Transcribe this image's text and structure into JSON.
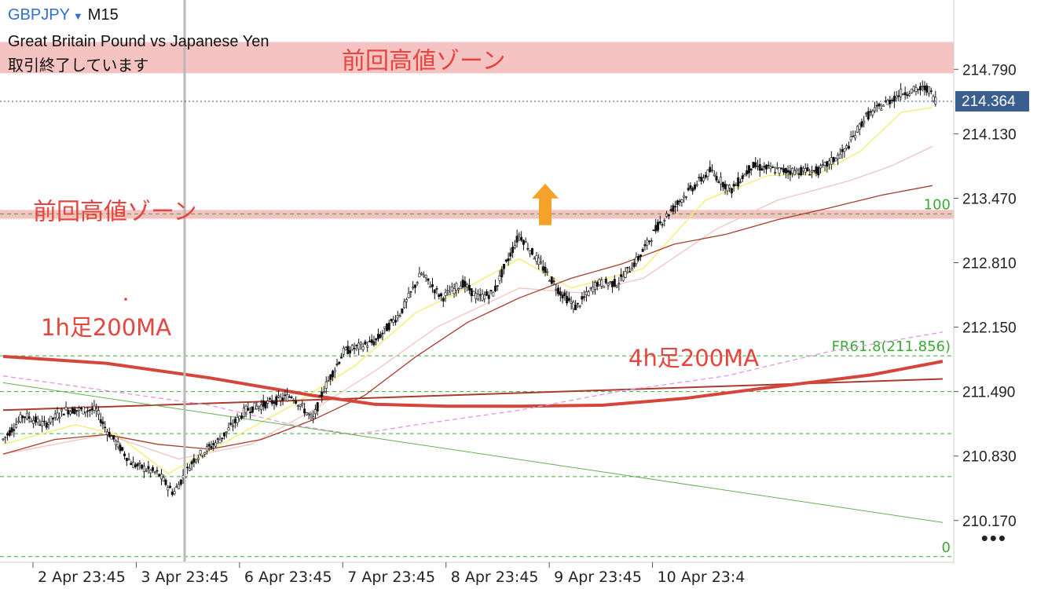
{
  "header": {
    "symbol": "GBPJPY",
    "dropdown_icon": "chevron-down-icon",
    "timeframe": "M15",
    "instrument_name": "Great Britain Pound vs Japanese Yen",
    "status": "取引終了しています"
  },
  "price_label": "214.364",
  "more_icon": "•••",
  "colors": {
    "zone_fill": "#f5c4c2",
    "annotation": "#e4453d",
    "fib": "#3aaa35",
    "bid_label_bg": "#3a5f8f"
  },
  "chart_data": {
    "type": "candlestick",
    "ylim": [
      209.75,
      215.5
    ],
    "y_ticks": [
      "214.790",
      "214.130",
      "213.470",
      "212.810",
      "212.150",
      "211.490",
      "210.830",
      "210.170"
    ],
    "x_ticks": [
      "2 Apr 23:45",
      "3 Apr 23:45",
      "6 Apr 23:45",
      "7 Apr 23:45",
      "8 Apr 23:45",
      "9 Apr 23:45",
      "10 Apr 23:4"
    ],
    "current_price": 214.364,
    "zones": [
      {
        "label": "前回高値ゾーン",
        "from": 214.75,
        "to": 215.07
      },
      {
        "label": "前回高値ゾーン",
        "from": 213.26,
        "to": 213.35
      }
    ],
    "annotations": [
      "1h足200MA",
      "4h足200MA"
    ],
    "fib_levels": [
      {
        "label": "100",
        "value": 213.31
      },
      {
        "label": "FR61.8(211.856)",
        "value": 211.856
      },
      {
        "label": "",
        "value": 211.49
      },
      {
        "label": "",
        "value": 211.06
      },
      {
        "label": "",
        "value": 210.62
      },
      {
        "label": "0",
        "value": 209.8
      }
    ],
    "arrow_marker": {
      "time": 5.25,
      "price": 213.62
    },
    "ohlc_path": [
      [
        0.0,
        211.0
      ],
      [
        0.2,
        211.25
      ],
      [
        0.4,
        211.15
      ],
      [
        0.6,
        211.3
      ],
      [
        0.9,
        211.3
      ],
      [
        1.0,
        211.1
      ],
      [
        1.25,
        210.75
      ],
      [
        1.5,
        210.65
      ],
      [
        1.65,
        210.45
      ],
      [
        1.85,
        210.8
      ],
      [
        2.1,
        211.0
      ],
      [
        2.35,
        211.3
      ],
      [
        2.8,
        211.45
      ],
      [
        3.0,
        211.2
      ],
      [
        3.1,
        211.5
      ],
      [
        3.3,
        211.9
      ],
      [
        3.6,
        212.0
      ],
      [
        3.85,
        212.3
      ],
      [
        4.05,
        212.7
      ],
      [
        4.25,
        212.45
      ],
      [
        4.45,
        212.6
      ],
      [
        4.6,
        212.45
      ],
      [
        4.75,
        212.5
      ],
      [
        4.85,
        212.75
      ],
      [
        5.0,
        213.1
      ],
      [
        5.2,
        212.8
      ],
      [
        5.4,
        212.5
      ],
      [
        5.55,
        212.35
      ],
      [
        5.75,
        212.6
      ],
      [
        5.95,
        212.6
      ],
      [
        6.15,
        212.85
      ],
      [
        6.35,
        213.2
      ],
      [
        6.6,
        213.5
      ],
      [
        6.85,
        213.75
      ],
      [
        7.05,
        213.55
      ],
      [
        7.25,
        213.8
      ],
      [
        7.55,
        213.75
      ],
      [
        7.9,
        213.75
      ],
      [
        8.15,
        213.95
      ],
      [
        8.35,
        214.3
      ],
      [
        8.7,
        214.55
      ],
      [
        8.95,
        214.6
      ],
      [
        9.05,
        214.45
      ]
    ],
    "series": [
      {
        "type": "moving-average",
        "color": "#f3ee6a",
        "values": [
          [
            0.0,
            210.95
          ],
          [
            0.7,
            211.15
          ],
          [
            1.1,
            211.05
          ],
          [
            1.6,
            210.65
          ],
          [
            2.2,
            211.0
          ],
          [
            2.8,
            211.35
          ],
          [
            3.4,
            211.75
          ],
          [
            4.0,
            212.3
          ],
          [
            4.4,
            212.5
          ],
          [
            5.0,
            212.85
          ],
          [
            5.5,
            212.55
          ],
          [
            6.2,
            212.75
          ],
          [
            6.8,
            213.45
          ],
          [
            7.4,
            213.7
          ],
          [
            7.9,
            213.72
          ],
          [
            8.3,
            213.95
          ],
          [
            8.7,
            214.35
          ],
          [
            9.0,
            214.4
          ]
        ]
      },
      {
        "type": "moving-average",
        "color": "#f2c4c2",
        "values": [
          [
            0.0,
            210.85
          ],
          [
            1.0,
            211.05
          ],
          [
            1.7,
            210.8
          ],
          [
            2.4,
            210.95
          ],
          [
            3.0,
            211.3
          ],
          [
            3.6,
            211.7
          ],
          [
            4.2,
            212.15
          ],
          [
            5.0,
            212.55
          ],
          [
            5.6,
            212.5
          ],
          [
            6.2,
            212.65
          ],
          [
            6.9,
            213.15
          ],
          [
            7.5,
            213.45
          ],
          [
            8.2,
            213.65
          ],
          [
            8.6,
            213.8
          ],
          [
            9.0,
            214.0
          ]
        ]
      },
      {
        "type": "moving-average",
        "color": "#a83c2d",
        "values": [
          [
            0.0,
            210.85
          ],
          [
            0.5,
            211.0
          ],
          [
            1.0,
            211.05
          ],
          [
            1.5,
            210.95
          ],
          [
            2.0,
            210.9
          ],
          [
            2.5,
            211.0
          ],
          [
            3.0,
            211.2
          ],
          [
            3.5,
            211.45
          ],
          [
            4.0,
            211.85
          ],
          [
            4.5,
            212.2
          ],
          [
            5.0,
            212.45
          ],
          [
            5.5,
            212.65
          ],
          [
            6.0,
            212.8
          ],
          [
            6.5,
            213.0
          ],
          [
            7.0,
            213.1
          ],
          [
            7.5,
            213.25
          ],
          [
            8.0,
            213.37
          ],
          [
            8.5,
            213.5
          ],
          [
            9.0,
            213.6
          ]
        ]
      },
      {
        "type": "4h-200MA",
        "color": "#a83c2d",
        "values": [
          [
            0.0,
            211.3
          ],
          [
            9.1,
            211.62
          ]
        ]
      },
      {
        "type": "1h-200MA",
        "color": "#d5453a",
        "values": [
          [
            0.0,
            211.85
          ],
          [
            1.0,
            211.78
          ],
          [
            2.0,
            211.63
          ],
          [
            3.0,
            211.45
          ],
          [
            3.6,
            211.36
          ],
          [
            4.3,
            211.34
          ],
          [
            5.0,
            211.34
          ],
          [
            5.8,
            211.35
          ],
          [
            6.6,
            211.42
          ],
          [
            7.4,
            211.53
          ],
          [
            8.4,
            211.66
          ],
          [
            9.1,
            211.8
          ]
        ]
      },
      {
        "type": "moving-average",
        "color": "#e596e3",
        "dashed": true,
        "values": [
          [
            0.0,
            211.65
          ],
          [
            1.0,
            211.5
          ],
          [
            2.0,
            211.35
          ],
          [
            2.8,
            211.15
          ],
          [
            3.4,
            211.05
          ],
          [
            4.0,
            211.15
          ],
          [
            5.0,
            211.3
          ],
          [
            6.0,
            211.5
          ],
          [
            7.0,
            211.65
          ],
          [
            8.0,
            211.9
          ],
          [
            9.1,
            212.1
          ]
        ]
      },
      {
        "type": "trendline",
        "color": "#66b052",
        "values": [
          [
            0.0,
            211.58
          ],
          [
            9.1,
            210.15
          ]
        ]
      }
    ]
  }
}
